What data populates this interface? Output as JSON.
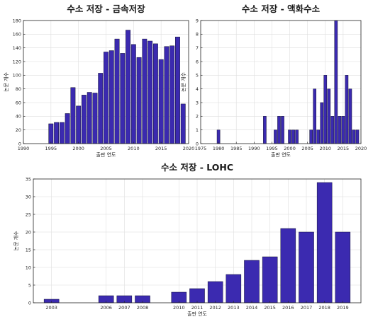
{
  "chart_data": [
    {
      "type": "bar",
      "title": "수소 저장 - 금속저장",
      "xlabel": "출판 연도",
      "ylabel": "논문 개수",
      "xlim": [
        1990,
        2020
      ],
      "ylim": [
        0,
        180
      ],
      "xticks": [
        1990,
        1995,
        2000,
        2005,
        2010,
        2015,
        2020
      ],
      "yticks": [
        0,
        20,
        40,
        60,
        80,
        100,
        120,
        140,
        160,
        180
      ],
      "grid": true,
      "bar_color": "#3b2ab0",
      "x": [
        1995,
        1996,
        1997,
        1998,
        1999,
        2000,
        2001,
        2002,
        2003,
        2004,
        2005,
        2006,
        2007,
        2008,
        2009,
        2010,
        2011,
        2012,
        2013,
        2014,
        2015,
        2016,
        2017,
        2018,
        2019
      ],
      "values": [
        29,
        31,
        31,
        44,
        82,
        55,
        71,
        75,
        74,
        103,
        134,
        136,
        153,
        132,
        166,
        145,
        126,
        153,
        150,
        146,
        123,
        142,
        143,
        156,
        58
      ]
    },
    {
      "type": "bar",
      "title": "수소 저장 - 액화수소",
      "xlabel": "출판 연도",
      "ylabel": "논문 개수",
      "xlim": [
        1975,
        2020
      ],
      "ylim": [
        0,
        9
      ],
      "xticks": [
        1975,
        1980,
        1985,
        1990,
        1995,
        2000,
        2005,
        2010,
        2015,
        2020
      ],
      "yticks": [
        0,
        1,
        2,
        3,
        4,
        5,
        6,
        7,
        8,
        9
      ],
      "grid": true,
      "bar_color": "#3b2ab0",
      "x": [
        1980,
        1993,
        1996,
        1997,
        1998,
        2000,
        2001,
        2002,
        2006,
        2007,
        2008,
        2009,
        2010,
        2011,
        2012,
        2013,
        2014,
        2015,
        2016,
        2017,
        2018,
        2019
      ],
      "values": [
        1,
        2,
        1,
        2,
        2,
        1,
        1,
        1,
        1,
        4,
        1,
        3,
        5,
        4,
        2,
        9,
        2,
        2,
        5,
        4,
        1,
        1
      ]
    },
    {
      "type": "bar",
      "title": "수소 저장 - LOHC",
      "xlabel": "출판 연도",
      "ylabel": "논문 개수",
      "ylim": [
        0,
        35
      ],
      "yticks": [
        0,
        5,
        10,
        15,
        20,
        25,
        30,
        35
      ],
      "grid": true,
      "bar_color": "#3b2ab0",
      "categories": [
        "2003",
        "2006",
        "2007",
        "2008",
        "2010",
        "2011",
        "2012",
        "2013",
        "2014",
        "2015",
        "2016",
        "2017",
        "2018",
        "2019"
      ],
      "x": [
        2003,
        2006,
        2007,
        2008,
        2010,
        2011,
        2012,
        2013,
        2014,
        2015,
        2016,
        2017,
        2018,
        2019
      ],
      "values": [
        1,
        2,
        2,
        2,
        3,
        4,
        6,
        8,
        12,
        13,
        21,
        20,
        34,
        20
      ]
    }
  ]
}
